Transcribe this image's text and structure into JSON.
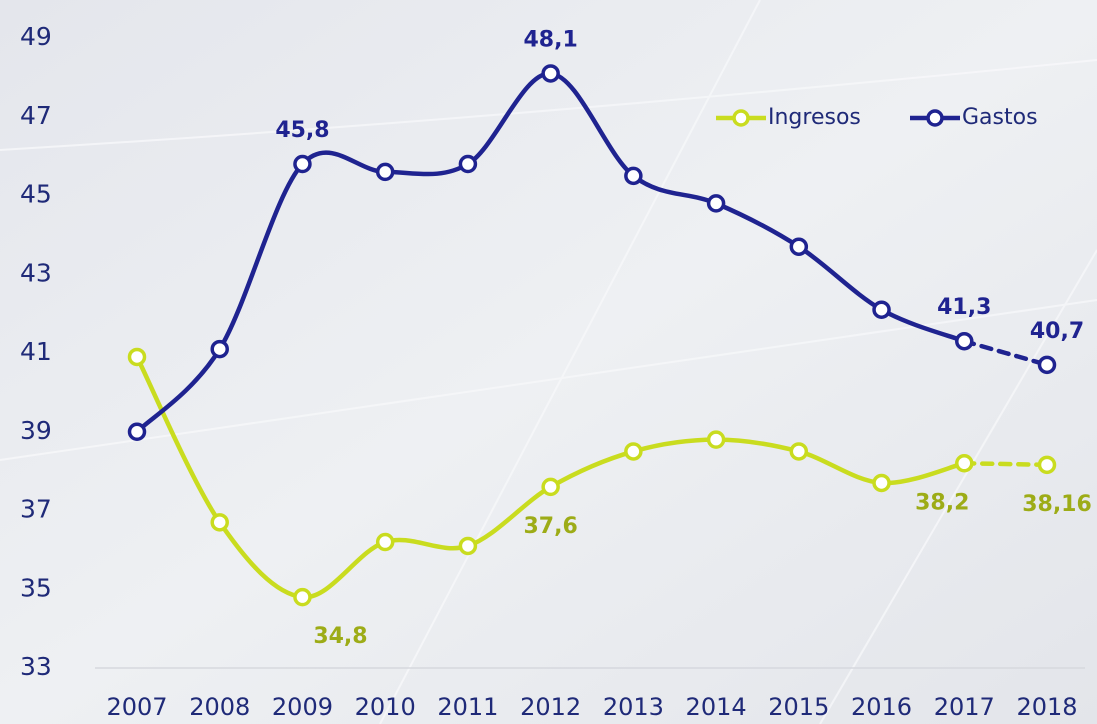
{
  "chart_data": {
    "type": "line",
    "categories": [
      "2007",
      "2008",
      "2009",
      "2010",
      "2011",
      "2012",
      "2013",
      "2014",
      "2015",
      "2016",
      "2017",
      "2018"
    ],
    "series": [
      {
        "name": "Ingresos",
        "color": "#c9dc1f",
        "label_color": "#9dac17",
        "values": [
          40.9,
          36.7,
          34.8,
          36.2,
          36.1,
          37.6,
          38.5,
          38.8,
          38.5,
          37.7,
          38.2,
          38.16
        ],
        "value_labels": [
          null,
          null,
          "34,8",
          null,
          null,
          "37,6",
          null,
          null,
          null,
          null,
          "38,2",
          "38,16"
        ],
        "dashed_last_segment": true
      },
      {
        "name": "Gastos",
        "color": "#1f2390",
        "label_color": "#1f2390",
        "values": [
          39.0,
          41.1,
          45.8,
          45.6,
          45.8,
          48.1,
          45.5,
          44.8,
          43.7,
          42.1,
          41.3,
          40.7
        ],
        "value_labels": [
          null,
          null,
          "45,8",
          null,
          null,
          "48,1",
          null,
          null,
          null,
          null,
          "41,3",
          "40,7"
        ],
        "dashed_last_segment": true
      }
    ],
    "ylim": [
      33,
      49
    ],
    "yticks": [
      33,
      35,
      37,
      39,
      41,
      43,
      45,
      47,
      49
    ],
    "grid": false,
    "legend": "upper right"
  }
}
